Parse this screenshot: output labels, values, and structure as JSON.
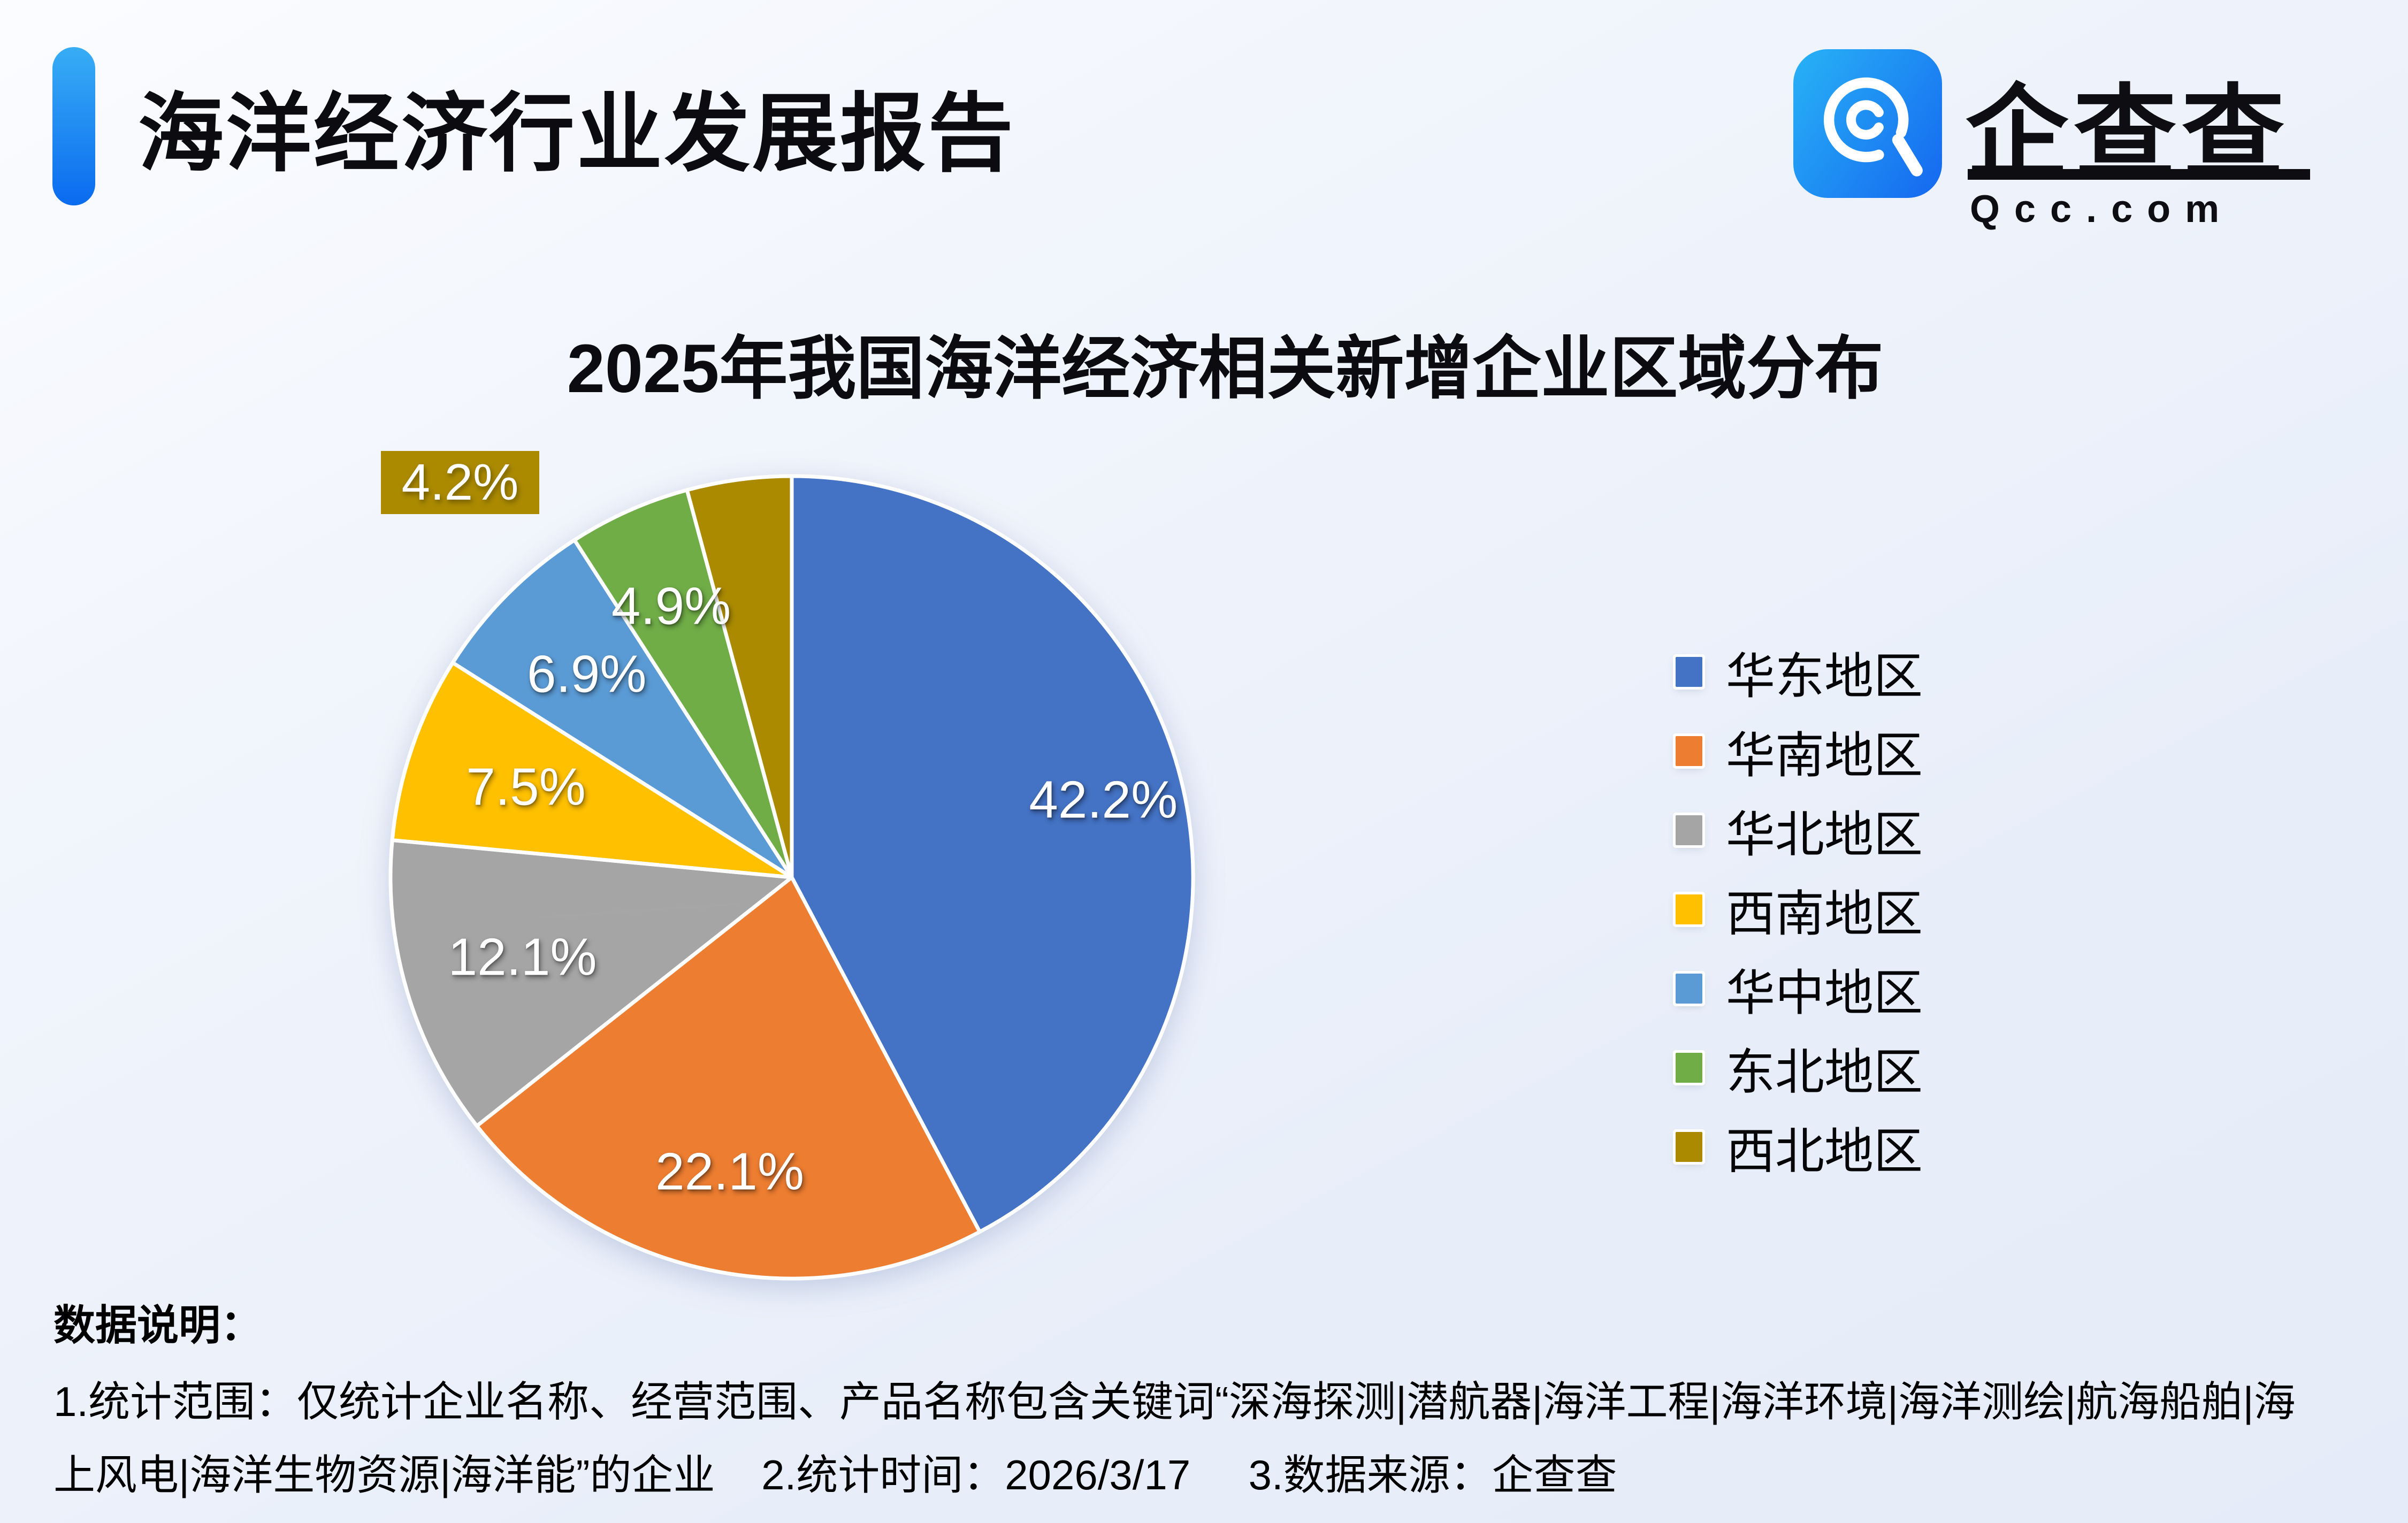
{
  "header": {
    "title": "海洋经济行业发展报告"
  },
  "logo": {
    "brand": "企查查",
    "domain": "Qcc.com"
  },
  "chart_data": {
    "type": "pie",
    "title": "2025年我国海洋经济相关新增企业区域分布",
    "categories": [
      "华东地区",
      "华南地区",
      "华北地区",
      "西南地区",
      "华中地区",
      "东北地区",
      "西北地区"
    ],
    "values": [
      42.2,
      22.1,
      12.1,
      7.5,
      6.9,
      4.9,
      4.2
    ],
    "value_labels": [
      "42.2%",
      "22.1%",
      "12.1%",
      "7.5%",
      "6.9%",
      "4.9%",
      "4.2%"
    ],
    "colors": [
      "#4472C4",
      "#ED7D31",
      "#A5A5A5",
      "#FFC000",
      "#5B9BD5",
      "#70AD47",
      "#AB8A00"
    ],
    "start_angle_deg": 0,
    "direction": "clockwise",
    "legend_position": "right",
    "label_style": "percent-inside; smallest slice labeled outside with gold callout box and gray leader line",
    "leader_line_color": "#A6A6A6"
  },
  "notes": {
    "heading": "数据说明：",
    "line1": "1.统计范围：仅统计企业名称、经营范围、产品名称包含关键词“深海探测|潜航器|海洋工程|海洋环境|海洋测绘|航海船舶|海",
    "line2": "上风电|海洋生物资源|海洋能”的企业    2.统计时间：2026/3/17     3.数据来源：企查查"
  }
}
